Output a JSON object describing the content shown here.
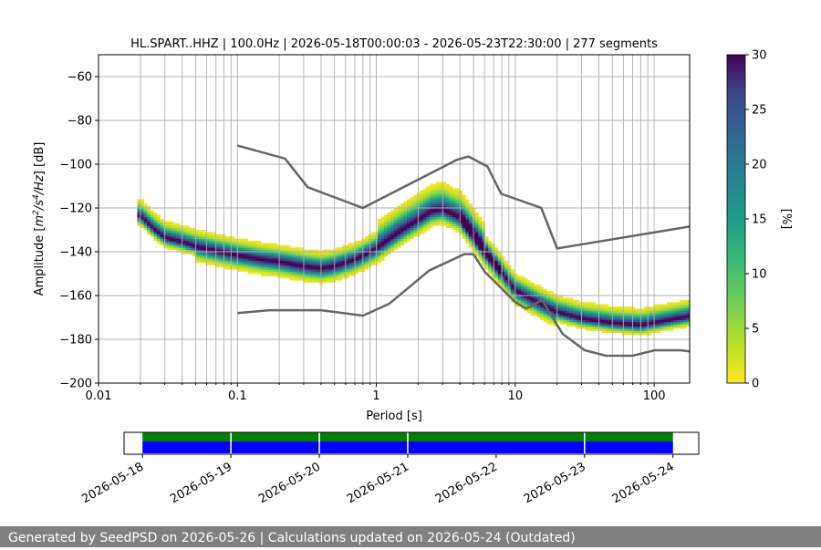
{
  "chart_data": {
    "type": "heatmap",
    "title": "HL.SPART..HHZ | 100.0Hz | 2026-05-18T00:00:03 - 2026-05-23T22:30:00 | 277 segments",
    "xlabel": "Period [s]",
    "ylabel_parts": [
      "Amplitude [",
      "m",
      "2",
      "/",
      "s",
      "4",
      "/",
      "Hz",
      "] [dB]"
    ],
    "x_scale": "log",
    "xlim": [
      0.01,
      180
    ],
    "ylim": [
      -200,
      -50
    ],
    "grid": true,
    "xticks": [
      {
        "value": 0.01,
        "label": "0.01"
      },
      {
        "value": 0.1,
        "label": "0.1"
      },
      {
        "value": 1,
        "label": "1"
      },
      {
        "value": 10,
        "label": "10"
      },
      {
        "value": 100,
        "label": "100"
      }
    ],
    "yticks": [
      {
        "value": -60,
        "label": "−60"
      },
      {
        "value": -80,
        "label": "−80"
      },
      {
        "value": -100,
        "label": "−100"
      },
      {
        "value": -120,
        "label": "−120"
      },
      {
        "value": -140,
        "label": "−140"
      },
      {
        "value": -160,
        "label": "−160"
      },
      {
        "value": -180,
        "label": "−180"
      },
      {
        "value": -200,
        "label": "−200"
      }
    ],
    "ppsd_mode": [
      [
        0.02,
        -124
      ],
      [
        0.025,
        -130
      ],
      [
        0.03,
        -134
      ],
      [
        0.04,
        -136
      ],
      [
        0.05,
        -138
      ],
      [
        0.07,
        -140
      ],
      [
        0.1,
        -142
      ],
      [
        0.15,
        -144
      ],
      [
        0.2,
        -145
      ],
      [
        0.3,
        -147
      ],
      [
        0.4,
        -148
      ],
      [
        0.5,
        -147
      ],
      [
        0.7,
        -144
      ],
      [
        1.0,
        -139
      ],
      [
        1.5,
        -131
      ],
      [
        2.0,
        -126
      ],
      [
        2.5,
        -122
      ],
      [
        3.0,
        -121
      ],
      [
        4.0,
        -125
      ],
      [
        5.0,
        -133
      ],
      [
        6.0,
        -140
      ],
      [
        8.0,
        -150
      ],
      [
        10.0,
        -158
      ],
      [
        15.0,
        -164
      ],
      [
        20.0,
        -168
      ],
      [
        30.0,
        -171
      ],
      [
        50.0,
        -173
      ],
      [
        80.0,
        -174
      ],
      [
        120.0,
        -172
      ],
      [
        180.0,
        -170
      ]
    ],
    "nhnm": [
      [
        0.1,
        -91.5
      ],
      [
        0.22,
        -97.4
      ],
      [
        0.32,
        -110.5
      ],
      [
        0.8,
        -120
      ],
      [
        3.8,
        -98
      ],
      [
        4.6,
        -96.5
      ],
      [
        6.3,
        -101
      ],
      [
        7.9,
        -113.5
      ],
      [
        15.4,
        -120
      ],
      [
        20,
        -138.5
      ],
      [
        180,
        -128.5
      ]
    ],
    "nlnm": [
      [
        0.1,
        -168
      ],
      [
        0.17,
        -166.7
      ],
      [
        0.4,
        -166.7
      ],
      [
        0.8,
        -169.2
      ],
      [
        1.24,
        -163.7
      ],
      [
        2.4,
        -148.6
      ],
      [
        4.3,
        -141.1
      ],
      [
        5.0,
        -141.1
      ],
      [
        6.0,
        -149
      ],
      [
        10,
        -163
      ],
      [
        12,
        -166
      ],
      [
        15.6,
        -162.1
      ],
      [
        21.9,
        -177.5
      ],
      [
        31.6,
        -185
      ],
      [
        45,
        -187.5
      ],
      [
        70,
        -187.5
      ],
      [
        101,
        -185
      ],
      [
        154,
        -185
      ],
      [
        180,
        -185.5
      ]
    ],
    "colorbar": {
      "label": "[%]",
      "range": [
        0,
        30
      ],
      "ticks": [
        {
          "value": 0,
          "label": "0"
        },
        {
          "value": 5,
          "label": "5"
        },
        {
          "value": 10,
          "label": "10"
        },
        {
          "value": 15,
          "label": "15"
        },
        {
          "value": 20,
          "label": "20"
        },
        {
          "value": 25,
          "label": "25"
        },
        {
          "value": 30,
          "label": "30"
        }
      ]
    },
    "data_coverage": {
      "xlim": [
        "2026-05-17T19:00:00",
        "2026-05-24T07:00:00"
      ],
      "coverage_start": "2026-05-18T00:00:03",
      "coverage_end": "2026-05-24T00:00:00",
      "gaps": [
        "2026-05-19",
        "2026-05-20",
        "2026-05-21",
        "2026-05-23"
      ],
      "bar_colors": {
        "available": "#008000",
        "used": "#0000ff"
      },
      "xticks": [
        "2026-05-18",
        "2026-05-19",
        "2026-05-20",
        "2026-05-21",
        "2026-05-22",
        "2026-05-23",
        "2026-05-24"
      ]
    },
    "colors": {
      "noise_models": "#666666",
      "grid": "#b0b0b0"
    }
  },
  "footer": "Generated by SeedPSD on 2026-05-26 | Calculations updated on 2026-05-24 (Outdated)"
}
